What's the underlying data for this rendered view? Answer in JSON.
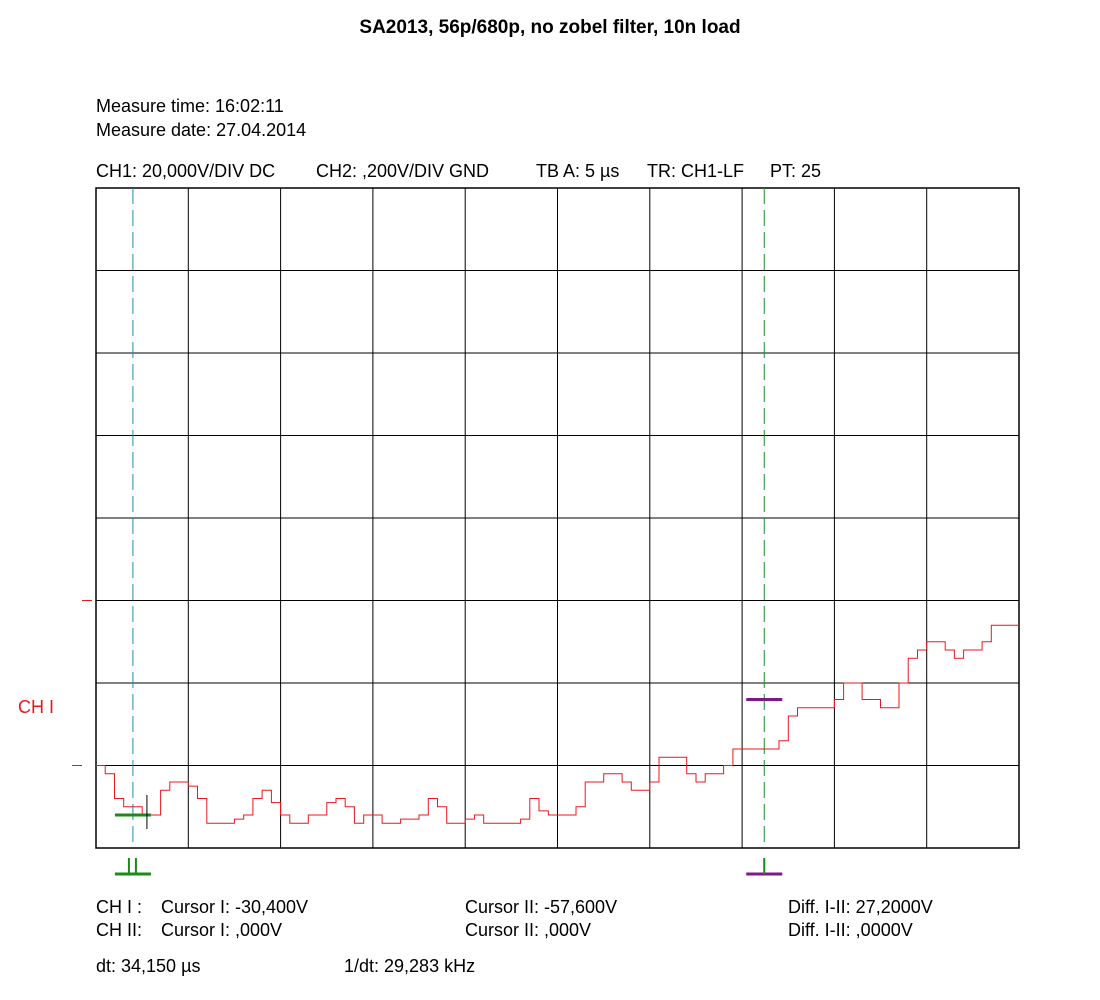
{
  "title": "SA2013, 56p/680p, no zobel filter, 10n load",
  "measure": {
    "time": "Measure time: 16:02:11",
    "date": "Measure date: 27.04.2014"
  },
  "settings": {
    "ch1": "CH1: 20,000V/DIV DC",
    "ch2": "CH2: ,200V/DIV GND",
    "timebase": "TB A: 5 µs",
    "trigger": "TR: CH1-LF",
    "pt": "PT: 25"
  },
  "colors": {
    "trace": "#e8191c",
    "cursor1": "#1f8fa8",
    "cursor2": "#1a8f2a",
    "cursor_marker1": "#1a8a1a",
    "cursor_marker2": "#7a1a8a",
    "grid": "#000000"
  },
  "chart_data": {
    "type": "line",
    "channel_label": "CH I",
    "grid": true,
    "x_divisions": 10,
    "y_divisions": 8,
    "x_units_per_div": 5,
    "y_units_per_div": 20,
    "xlim": [
      0,
      50
    ],
    "ylim": [
      -20,
      140
    ],
    "series": [
      {
        "x": [
          0,
          0.5,
          1.0,
          1.5,
          2.0,
          2.5,
          3.0,
          3.5,
          4.0,
          4.5,
          5.0,
          5.5,
          6.0,
          6.5,
          7.0,
          7.5,
          8.0,
          8.5,
          9.0,
          9.5,
          10.0,
          10.5,
          11.0,
          11.5,
          12.0,
          12.5,
          13.0,
          13.5,
          14.0,
          14.5,
          15.0,
          15.5,
          16.0,
          16.5,
          17.0,
          17.5,
          18.0,
          18.5,
          19.0,
          19.5,
          20.0,
          20.5,
          21.0,
          21.5,
          22.0,
          22.5,
          23.0,
          23.5,
          24.0,
          24.5,
          25.0,
          25.5,
          26.0,
          26.5,
          27.0,
          27.5,
          28.0,
          28.5,
          29.0,
          29.5,
          30.0,
          30.5,
          31.0,
          31.5,
          32.0,
          32.5,
          33.0,
          33.5,
          34.0,
          34.5,
          35.0,
          35.5,
          36.0,
          36.5,
          37.0,
          37.5,
          38.0,
          38.5,
          39.0,
          39.5,
          40.0,
          40.5,
          41.0,
          41.5,
          42.0,
          42.5,
          43.0,
          43.5,
          44.0,
          44.5,
          45.0,
          45.5,
          46.0,
          46.5,
          47.0,
          47.5,
          48.0,
          48.5,
          49.0,
          49.5,
          50.0
        ],
        "values": [
          0,
          -2,
          -8,
          -10,
          -10,
          -12,
          -12,
          -6,
          -4,
          -4,
          -5,
          -8,
          -14,
          -14,
          -14,
          -13,
          -12,
          -8,
          -6,
          -9,
          -12,
          -14,
          -14,
          -12,
          -12,
          -9,
          -8,
          -10,
          -14,
          -12,
          -12,
          -14,
          -14,
          -13,
          -13,
          -12,
          -8,
          -10,
          -14,
          -14,
          -13,
          -12,
          -14,
          -14,
          -14,
          -14,
          -13,
          -8,
          -11,
          -12,
          -12,
          -12,
          -10,
          -4,
          -4,
          -2,
          -2,
          -4,
          -6,
          -6,
          -4,
          2,
          2,
          2,
          -2,
          -4,
          -2,
          -2,
          0,
          4,
          4,
          4,
          4,
          4,
          6,
          12,
          14,
          14,
          14,
          14,
          16,
          20,
          20,
          16,
          16,
          14,
          14,
          20,
          26,
          28,
          30,
          30,
          28,
          26,
          28,
          28,
          30,
          34,
          34,
          34,
          34
        ]
      }
    ],
    "cursors": {
      "cursor1_x": 2.0,
      "cursor2_x": 36.2,
      "cursor1_level": -12,
      "cursor2_level": 16
    }
  },
  "readouts": {
    "row1": {
      "label": "CH I :",
      "c1": "Cursor I: -30,400V",
      "c2": "Cursor II: -57,600V",
      "diff": "Diff. I-II: 27,2000V"
    },
    "row2": {
      "label": "CH II:",
      "c1": "Cursor I: ,000V",
      "c2": "Cursor II: ,000V",
      "diff": "Diff. I-II: ,0000V"
    },
    "dt": "dt: 34,150 µs",
    "inv_dt": "1/dt: 29,283 kHz",
    "cursor1_marker": "II",
    "cursor2_marker": "I"
  }
}
